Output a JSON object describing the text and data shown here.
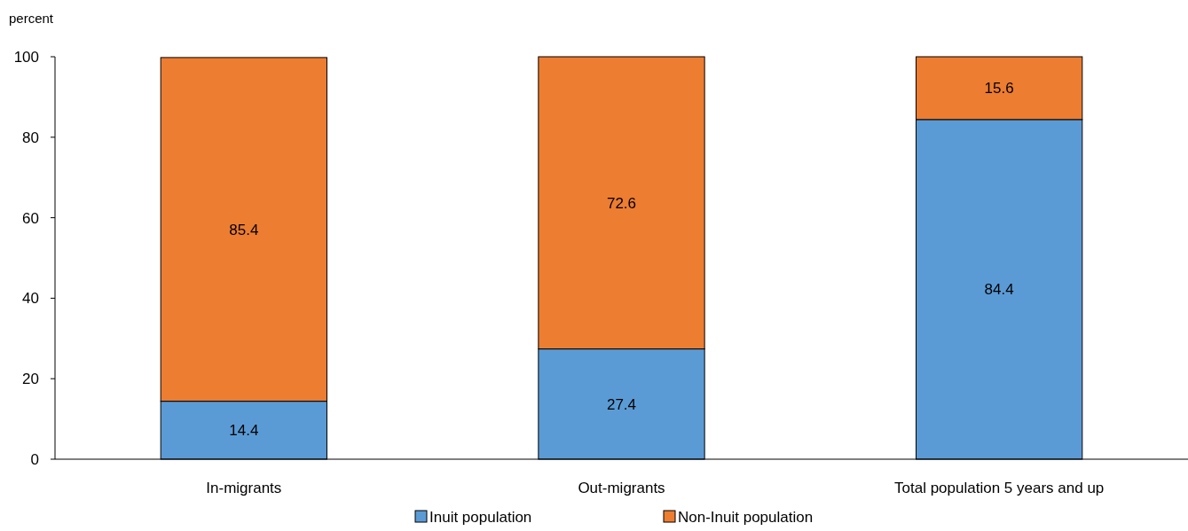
{
  "chart_data": {
    "type": "bar",
    "ylabel": "percent",
    "categories": [
      "In-migrants",
      "Out-migrants",
      "Total population 5 years and up"
    ],
    "series": [
      {
        "name": "Inuit population",
        "color": "#5b9bd5",
        "values": [
          14.4,
          27.4,
          84.4
        ]
      },
      {
        "name": "Non-Inuit population",
        "color": "#ed7d31",
        "values": [
          85.4,
          72.6,
          15.6
        ]
      }
    ],
    "stacked": true,
    "ylim": [
      0,
      100
    ],
    "yticks": [
      0,
      20,
      40,
      60,
      80,
      100
    ],
    "data_labels": true,
    "legend": "bottom",
    "grid": false
  }
}
